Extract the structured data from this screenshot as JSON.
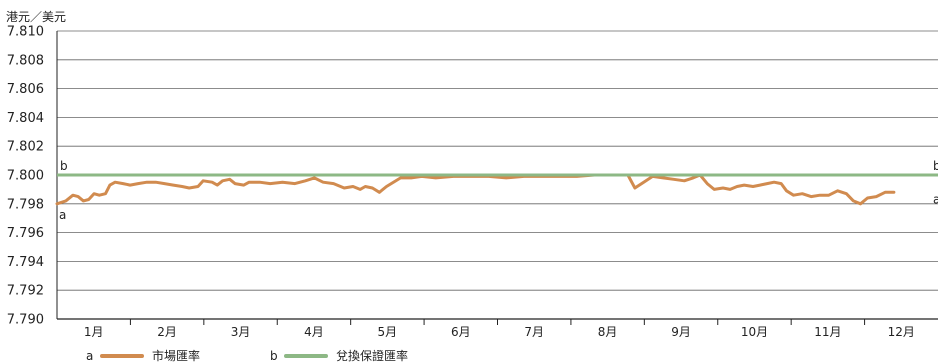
{
  "chart_data": {
    "type": "line",
    "unit_label": "港元／美元",
    "ylim": [
      7.79,
      7.81
    ],
    "yticks": [
      "7.810",
      "7.808",
      "7.806",
      "7.804",
      "7.802",
      "7.800",
      "7.798",
      "7.796",
      "7.794",
      "7.792",
      "7.790"
    ],
    "categories": [
      "1月",
      "2月",
      "3月",
      "4月",
      "5月",
      "6月",
      "7月",
      "8月",
      "9月",
      "10月",
      "11月",
      "12月"
    ],
    "grid": true,
    "legend_position": "bottom",
    "series": [
      {
        "key": "a",
        "name": "市場匯率",
        "color": "#D18B4F",
        "points": [
          [
            0.0,
            7.798
          ],
          [
            0.01,
            7.7982
          ],
          [
            0.018,
            7.7986
          ],
          [
            0.024,
            7.7985
          ],
          [
            0.03,
            7.7982
          ],
          [
            0.036,
            7.7983
          ],
          [
            0.042,
            7.7987
          ],
          [
            0.048,
            7.7986
          ],
          [
            0.055,
            7.7987
          ],
          [
            0.06,
            7.7993
          ],
          [
            0.066,
            7.7995
          ],
          [
            0.075,
            7.7994
          ],
          [
            0.083,
            7.7993
          ],
          [
            0.092,
            7.7994
          ],
          [
            0.102,
            7.7995
          ],
          [
            0.112,
            7.7995
          ],
          [
            0.122,
            7.7994
          ],
          [
            0.132,
            7.7993
          ],
          [
            0.142,
            7.7992
          ],
          [
            0.15,
            7.7991
          ],
          [
            0.16,
            7.7992
          ],
          [
            0.166,
            7.7996
          ],
          [
            0.176,
            7.7995
          ],
          [
            0.182,
            7.7993
          ],
          [
            0.188,
            7.7996
          ],
          [
            0.196,
            7.7997
          ],
          [
            0.202,
            7.7994
          ],
          [
            0.212,
            7.7993
          ],
          [
            0.218,
            7.7995
          ],
          [
            0.23,
            7.7995
          ],
          [
            0.242,
            7.7994
          ],
          [
            0.256,
            7.7995
          ],
          [
            0.27,
            7.7994
          ],
          [
            0.282,
            7.7996
          ],
          [
            0.292,
            7.7998
          ],
          [
            0.302,
            7.7995
          ],
          [
            0.314,
            7.7994
          ],
          [
            0.326,
            7.7991
          ],
          [
            0.336,
            7.7992
          ],
          [
            0.344,
            7.799
          ],
          [
            0.35,
            7.7992
          ],
          [
            0.358,
            7.7991
          ],
          [
            0.366,
            7.7988
          ],
          [
            0.374,
            7.7992
          ],
          [
            0.39,
            7.7998
          ],
          [
            0.402,
            7.7998
          ],
          [
            0.414,
            7.7999
          ],
          [
            0.43,
            7.7998
          ],
          [
            0.45,
            7.7999
          ],
          [
            0.47,
            7.7999
          ],
          [
            0.49,
            7.7999
          ],
          [
            0.51,
            7.7998
          ],
          [
            0.53,
            7.7999
          ],
          [
            0.55,
            7.7999
          ],
          [
            0.57,
            7.7999
          ],
          [
            0.59,
            7.7999
          ],
          [
            0.61,
            7.8
          ],
          [
            0.626,
            7.8
          ],
          [
            0.64,
            7.8
          ],
          [
            0.648,
            7.8
          ],
          [
            0.656,
            7.7991
          ],
          [
            0.666,
            7.7995
          ],
          [
            0.676,
            7.7999
          ],
          [
            0.688,
            7.7998
          ],
          [
            0.7,
            7.7997
          ],
          [
            0.712,
            7.7996
          ],
          [
            0.722,
            7.7998
          ],
          [
            0.73,
            7.8
          ],
          [
            0.738,
            7.7994
          ],
          [
            0.746,
            7.799
          ],
          [
            0.756,
            7.7991
          ],
          [
            0.764,
            7.799
          ],
          [
            0.772,
            7.7992
          ],
          [
            0.78,
            7.7993
          ],
          [
            0.79,
            7.7992
          ],
          [
            0.798,
            7.7993
          ],
          [
            0.806,
            7.7994
          ],
          [
            0.814,
            7.7995
          ],
          [
            0.822,
            7.7994
          ],
          [
            0.828,
            7.7989
          ],
          [
            0.836,
            7.7986
          ],
          [
            0.846,
            7.7987
          ],
          [
            0.856,
            7.7985
          ],
          [
            0.866,
            7.7986
          ],
          [
            0.876,
            7.7986
          ],
          [
            0.886,
            7.7989
          ],
          [
            0.896,
            7.7987
          ],
          [
            0.904,
            7.7982
          ],
          [
            0.912,
            7.798
          ],
          [
            0.92,
            7.7984
          ],
          [
            0.93,
            7.7985
          ],
          [
            0.94,
            7.7988
          ],
          [
            0.95,
            7.7988
          ]
        ]
      },
      {
        "key": "b",
        "name": "兌換保證匯率",
        "color": "#8DB885",
        "value": 7.8
      }
    ]
  }
}
